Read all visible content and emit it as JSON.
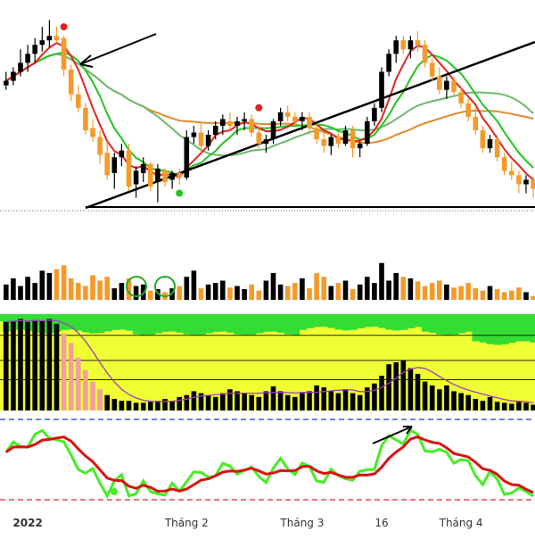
{
  "chart_data": {
    "type": "candlestick",
    "x_axis": {
      "ticks": [
        {
          "label": "2022",
          "bar": 3,
          "bold": true
        },
        {
          "label": "Tháng 2",
          "bar": 25
        },
        {
          "label": "Tháng 3",
          "bar": 41
        },
        {
          "label": "16",
          "bar": 52
        },
        {
          "label": "Tháng 4",
          "bar": 63
        }
      ]
    },
    "price_axis": {
      "min": 0,
      "max": 100
    },
    "candles": [
      [
        70,
        76,
        68,
        72
      ],
      [
        72,
        78,
        70,
        76
      ],
      [
        76,
        86,
        74,
        80
      ],
      [
        80,
        88,
        76,
        84
      ],
      [
        84,
        91,
        80,
        88
      ],
      [
        88,
        96,
        85,
        90
      ],
      [
        90,
        99,
        87,
        92
      ],
      [
        92,
        96,
        89,
        90
      ],
      [
        91,
        92,
        74,
        77
      ],
      [
        77,
        79,
        63,
        66
      ],
      [
        66,
        70,
        58,
        60
      ],
      [
        60,
        62,
        48,
        50
      ],
      [
        51,
        55,
        45,
        47
      ],
      [
        47,
        50,
        35,
        39
      ],
      [
        40,
        45,
        28,
        30
      ],
      [
        31,
        40,
        24,
        38
      ],
      [
        38,
        44,
        34,
        41
      ],
      [
        41,
        44,
        23,
        25
      ],
      [
        26,
        34,
        20,
        32
      ],
      [
        31,
        38,
        27,
        35
      ],
      [
        35,
        36,
        23,
        25
      ],
      [
        27,
        35,
        18,
        33
      ],
      [
        32,
        33,
        25,
        27
      ],
      [
        28,
        32,
        24,
        31
      ],
      [
        31,
        33,
        26,
        29
      ],
      [
        29,
        50,
        28,
        47
      ],
      [
        47,
        52,
        44,
        49
      ],
      [
        49,
        53,
        40,
        43
      ],
      [
        43,
        50,
        41,
        48
      ],
      [
        48,
        54,
        46,
        52
      ],
      [
        52,
        57,
        48,
        55
      ],
      [
        54,
        58,
        50,
        52
      ],
      [
        52,
        56,
        48,
        54
      ],
      [
        54,
        58,
        50,
        55
      ],
      [
        55,
        57,
        47,
        49
      ],
      [
        49,
        52,
        42,
        44
      ],
      [
        44,
        48,
        40,
        46
      ],
      [
        46,
        55,
        44,
        54
      ],
      [
        54,
        60,
        52,
        58
      ],
      [
        58,
        61,
        54,
        56
      ],
      [
        56,
        58,
        52,
        54
      ],
      [
        54,
        58,
        50,
        56
      ],
      [
        56,
        58,
        48,
        51
      ],
      [
        51,
        53,
        44,
        46
      ],
      [
        46,
        49,
        40,
        43
      ],
      [
        43,
        48,
        39,
        47
      ],
      [
        47,
        49,
        42,
        44
      ],
      [
        44,
        52,
        43,
        50
      ],
      [
        50,
        52,
        38,
        42
      ],
      [
        42,
        45,
        38,
        44
      ],
      [
        44,
        56,
        43,
        54
      ],
      [
        54,
        62,
        52,
        60
      ],
      [
        60,
        78,
        58,
        76
      ],
      [
        76,
        86,
        74,
        84
      ],
      [
        84,
        92,
        80,
        90
      ],
      [
        90,
        92,
        84,
        86
      ],
      [
        86,
        92,
        82,
        90
      ],
      [
        90,
        94,
        85,
        88
      ],
      [
        88,
        90,
        78,
        80
      ],
      [
        80,
        82,
        72,
        74
      ],
      [
        74,
        78,
        66,
        68
      ],
      [
        68,
        74,
        64,
        72
      ],
      [
        72,
        74,
        66,
        67
      ],
      [
        67,
        70,
        60,
        62
      ],
      [
        62,
        64,
        54,
        56
      ],
      [
        56,
        60,
        48,
        50
      ],
      [
        50,
        52,
        40,
        42
      ],
      [
        42,
        48,
        40,
        46
      ],
      [
        46,
        48,
        36,
        38
      ],
      [
        38,
        40,
        30,
        32
      ],
      [
        32,
        36,
        28,
        30
      ],
      [
        30,
        32,
        22,
        26
      ],
      [
        26,
        30,
        22,
        28
      ],
      [
        28,
        29,
        20,
        24
      ]
    ],
    "volume": [
      20,
      28,
      18,
      30,
      22,
      38,
      35,
      40,
      45,
      28,
      22,
      18,
      32,
      25,
      30,
      15,
      22,
      28,
      18,
      20,
      12,
      14,
      10,
      15,
      18,
      30,
      38,
      15,
      20,
      22,
      25,
      16,
      18,
      14,
      20,
      12,
      25,
      35,
      20,
      18,
      22,
      28,
      15,
      35,
      30,
      18,
      22,
      25,
      14,
      20,
      30,
      22,
      48,
      25,
      35,
      30,
      28,
      24,
      18,
      22,
      25,
      20,
      16,
      18,
      22,
      15,
      12,
      18,
      14,
      10,
      12,
      16,
      10,
      5
    ],
    "vol_max": 100,
    "osc_bars": [
      92,
      93,
      95,
      92,
      94,
      93,
      95,
      90,
      80,
      70,
      55,
      42,
      30,
      22,
      16,
      12,
      10,
      10,
      8,
      8,
      9,
      10,
      12,
      10,
      14,
      16,
      20,
      18,
      16,
      14,
      18,
      22,
      20,
      18,
      16,
      14,
      20,
      25,
      20,
      16,
      14,
      18,
      20,
      26,
      24,
      20,
      18,
      22,
      18,
      16,
      24,
      28,
      36,
      48,
      50,
      52,
      44,
      38,
      30,
      26,
      22,
      26,
      20,
      18,
      16,
      12,
      10,
      14,
      9,
      8,
      7,
      9,
      8,
      6
    ],
    "ma_lines": [
      {
        "color": "#2aa52a",
        "level": 0.42
      },
      {
        "color": "#7fbf7f",
        "level": 0.62
      },
      {
        "color": "#e08a2e",
        "level": 0.75
      }
    ],
    "colors": {
      "up": "#000000",
      "down": "#f59a2a",
      "ma_fast": "#e02424",
      "ma_mid": "#22c422",
      "ma_slow": "#6fb86f",
      "ma_long": "#e08a2e",
      "zone_top": "#33dd33",
      "zone_mid": "#f0ff33",
      "osc_fast": "#44ee22",
      "osc_slow": "#dd1111",
      "osc_up_bar": "#f2a0a0"
    }
  }
}
